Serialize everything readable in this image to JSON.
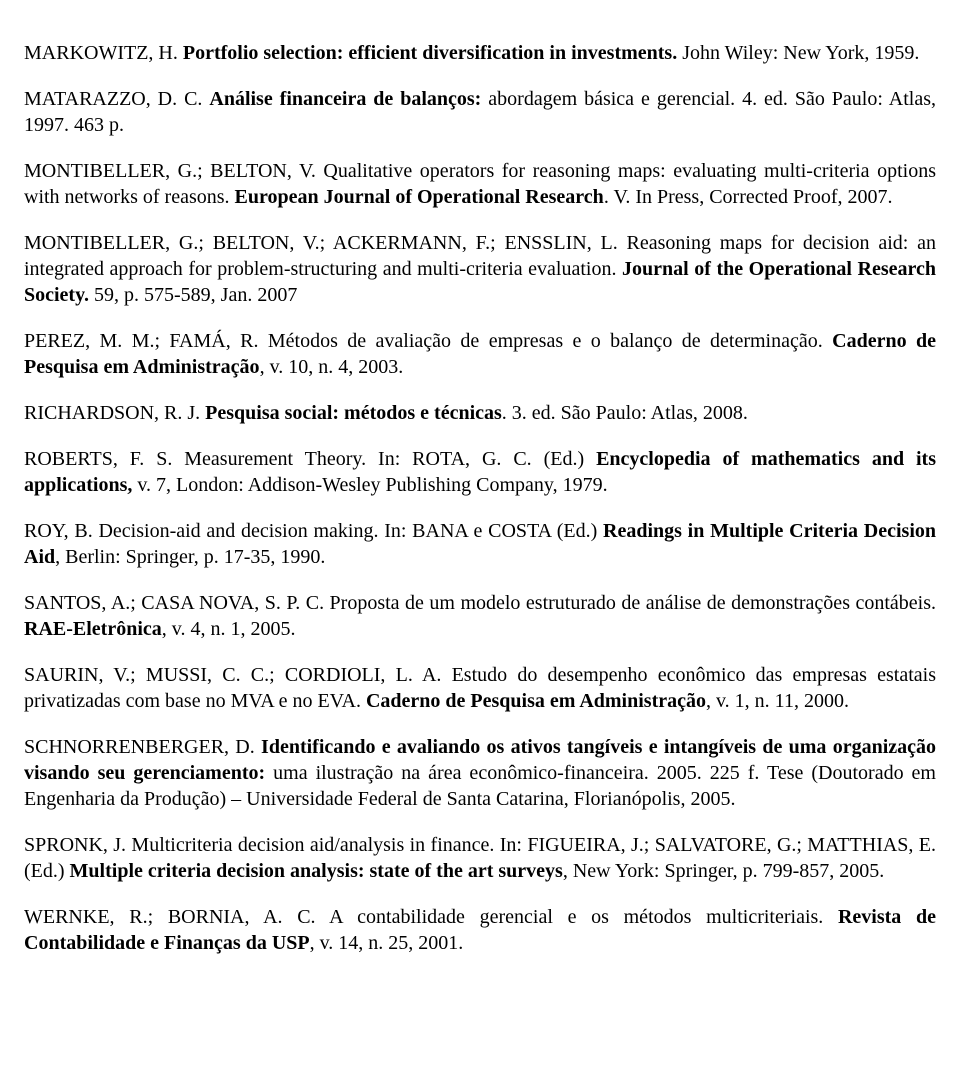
{
  "references": [
    {
      "html": "MARKOWITZ, H. <span class='b'>Portfolio selection: efficient diversification in investments.</span> John Wiley: New York, 1959."
    },
    {
      "html": "MATARAZZO, D. C. <span class='b'>Análise financeira de balanços:</span> abordagem básica e gerencial. 4. ed. São Paulo: Atlas, 1997. 463 p."
    },
    {
      "html": "MONTIBELLER, G.; BELTON, V. Qualitative operators for reasoning maps: evaluating multi-criteria options with networks of reasons. <span class='b'>European Journal of Operational Research</span>. V. In Press, Corrected Proof, 2007."
    },
    {
      "html": "MONTIBELLER, G.; BELTON, V.; ACKERMANN, F.; ENSSLIN, L. Reasoning maps for decision aid: an integrated approach for problem-structuring and multi-criteria evaluation. <span class='b'>Journal of the Operational Research Society.</span> 59, p. 575-589, Jan. 2007"
    },
    {
      "html": "PEREZ, M. M.; FAMÁ, R. Métodos de avaliação de empresas e o balanço de determinação. <span class='b'>Caderno de Pesquisa em Administração</span>, v. 10, n. 4, 2003."
    },
    {
      "html": "RICHARDSON, R. J. <span class='b'>Pesquisa social: métodos e técnicas</span>. 3. ed. São Paulo: Atlas, 2008."
    },
    {
      "html": "ROBERTS, F. S. Measurement Theory. In: ROTA, G. C. (Ed.) <span class='b'>Encyclopedia of mathematics and its applications,</span> v. 7, London: Addison-Wesley Publishing Company, 1979."
    },
    {
      "html": "ROY, B. Decision-aid and decision making. In: BANA e COSTA (Ed.) <span class='b'>Readings in Multiple Criteria Decision Aid</span>, Berlin: Springer, p. 17-35, 1990."
    },
    {
      "html": "SANTOS, A.; CASA NOVA, S. P. C. Proposta de um modelo estruturado de análise de demonstrações contábeis. <span class='b'>RAE-Eletrônica</span>, v. 4, n. 1, 2005."
    },
    {
      "html": "SAURIN, V.; MUSSI, C. C.; CORDIOLI, L. A. Estudo do desempenho econômico das empresas estatais privatizadas com base no MVA e no EVA. <span class='b'>Caderno de Pesquisa em Administração</span>, v. 1, n. 11, 2000."
    },
    {
      "html": "SCHNORRENBERGER, D. <span class='b'>Identificando e avaliando os ativos tangíveis e intangíveis de uma organização visando seu gerenciamento:</span> uma ilustração na área econômico-financeira. 2005. 225 f. Tese (Doutorado em Engenharia da Produção) – Universidade Federal de Santa Catarina, Florianópolis, 2005."
    },
    {
      "html": "SPRONK, J. Multicriteria decision aid/analysis in finance. In: FIGUEIRA, J.; SALVATORE, G.; MATTHIAS, E. (Ed.) <span class='b'>Multiple criteria decision analysis: state of the art surveys</span>, New York: Springer, p. 799-857, 2005."
    },
    {
      "html": "WERNKE, R.; BORNIA, A. C. A contabilidade gerencial e os métodos multicriteriais. <span class='b'>Revista de Contabilidade e Finanças da USP</span>, v. 14, n. 25, 2001."
    }
  ]
}
